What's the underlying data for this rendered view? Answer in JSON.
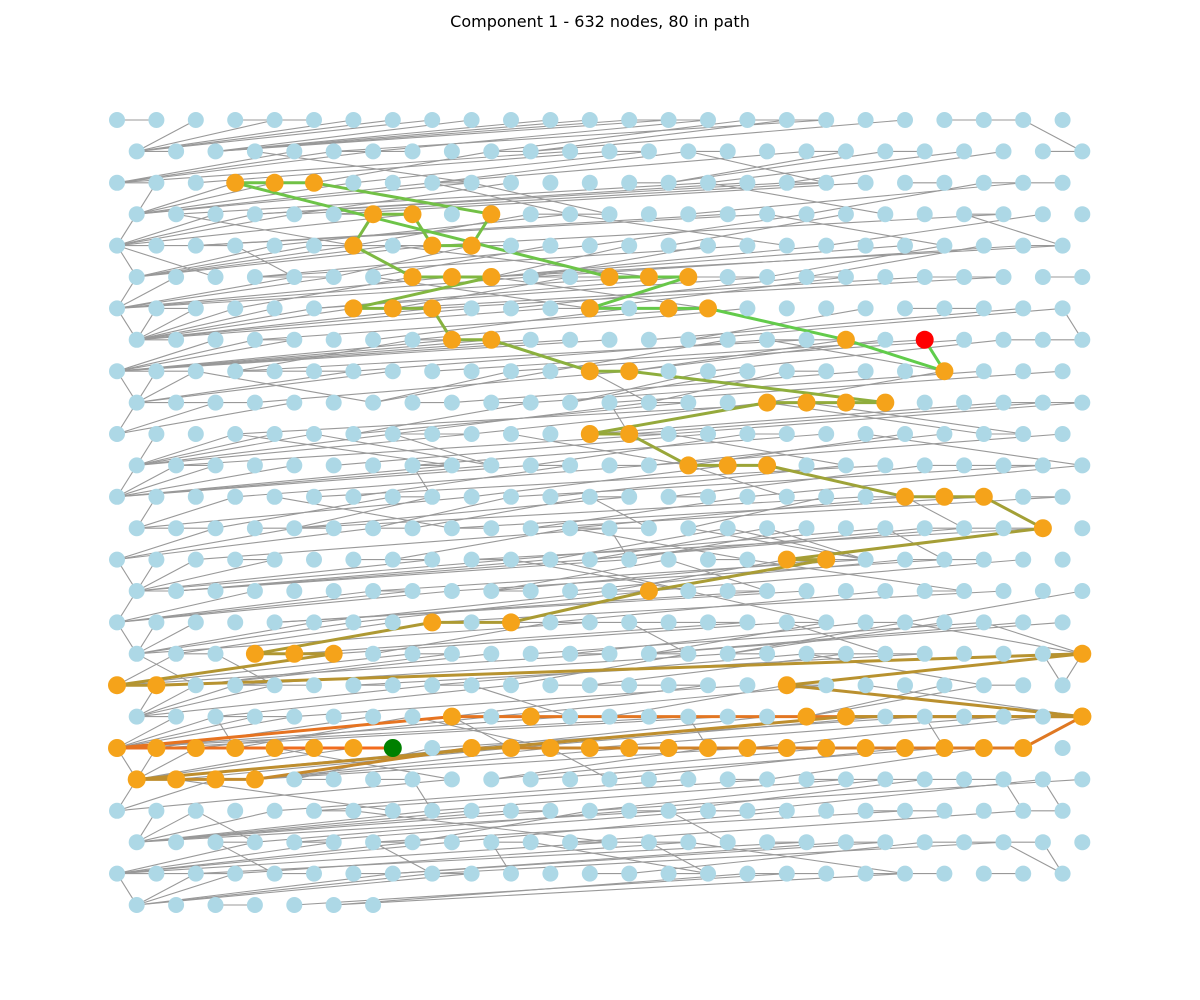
{
  "title": "Component 1 - 632 nodes, 80 in path",
  "colors": {
    "background": "#ffffff",
    "node": "#add8e6",
    "edge": "#999999",
    "path_node": "#f5a31a",
    "start_node": "#008000",
    "end_node": "#ff0000",
    "path_edge_start": "#f26b1d",
    "path_edge_end": "#5fcd4c"
  },
  "graph": {
    "total_nodes": 632,
    "path_nodes": 80,
    "grid_rows": 26,
    "grid_columns": 25,
    "last_row_nodes": 7,
    "start_node": [
      20,
      7
    ],
    "end_node": [
      7,
      20
    ]
  }
}
